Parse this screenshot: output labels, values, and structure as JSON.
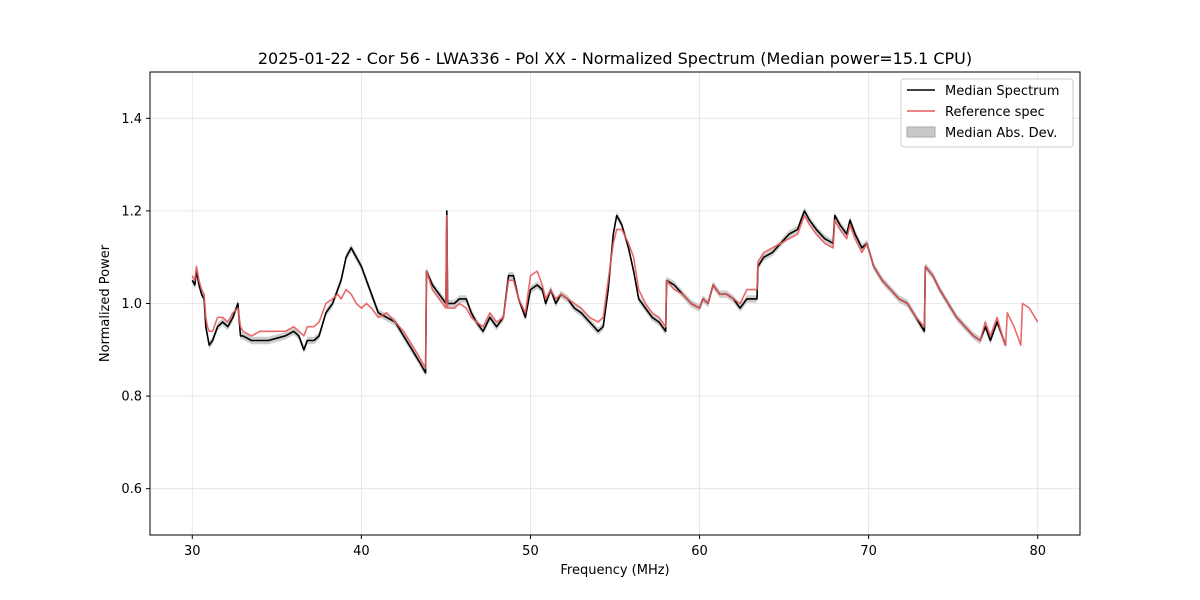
{
  "chart_data": {
    "type": "line",
    "title": "2025-01-22 - Cor 56 - LWA336 - Pol XX - Normalized Spectrum (Median power=15.1 CPU)",
    "xlabel": "Frequency (MHz)",
    "ylabel": "Normalized Power",
    "xlim": [
      27.5,
      82.5
    ],
    "ylim": [
      0.5,
      1.5
    ],
    "xticks": [
      30,
      40,
      50,
      60,
      70,
      80
    ],
    "yticks": [
      0.6,
      0.8,
      1.0,
      1.2,
      1.4
    ],
    "grid": true,
    "legend_position": "top-right",
    "mad_halfwidth": 0.008,
    "series": [
      {
        "name": "Median Spectrum",
        "color": "#000000",
        "points": [
          [
            30.0,
            1.05
          ],
          [
            30.15,
            1.04
          ],
          [
            30.25,
            1.07
          ],
          [
            30.4,
            1.04
          ],
          [
            30.55,
            1.02
          ],
          [
            30.7,
            1.01
          ],
          [
            30.8,
            0.95
          ],
          [
            30.9,
            0.93
          ],
          [
            31.0,
            0.91
          ],
          [
            31.2,
            0.92
          ],
          [
            31.5,
            0.95
          ],
          [
            31.8,
            0.96
          ],
          [
            32.1,
            0.95
          ],
          [
            32.4,
            0.97
          ],
          [
            32.7,
            1.0
          ],
          [
            32.85,
            0.93
          ],
          [
            33.0,
            0.93
          ],
          [
            33.5,
            0.92
          ],
          [
            34.0,
            0.92
          ],
          [
            34.5,
            0.92
          ],
          [
            35.0,
            0.925
          ],
          [
            35.5,
            0.93
          ],
          [
            36.0,
            0.94
          ],
          [
            36.3,
            0.93
          ],
          [
            36.6,
            0.9
          ],
          [
            36.8,
            0.92
          ],
          [
            37.2,
            0.92
          ],
          [
            37.5,
            0.93
          ],
          [
            37.9,
            0.98
          ],
          [
            38.3,
            1.0
          ],
          [
            38.6,
            1.03
          ],
          [
            38.8,
            1.05
          ],
          [
            39.1,
            1.1
          ],
          [
            39.4,
            1.12
          ],
          [
            39.7,
            1.1
          ],
          [
            40.0,
            1.08
          ],
          [
            40.3,
            1.05
          ],
          [
            40.6,
            1.02
          ],
          [
            41.0,
            0.98
          ],
          [
            41.5,
            0.97
          ],
          [
            42.0,
            0.96
          ],
          [
            42.5,
            0.93
          ],
          [
            43.0,
            0.9
          ],
          [
            43.5,
            0.87
          ],
          [
            43.8,
            0.85
          ],
          [
            43.85,
            1.07
          ],
          [
            44.2,
            1.04
          ],
          [
            44.6,
            1.02
          ],
          [
            45.0,
            1.0
          ],
          [
            45.05,
            1.2
          ],
          [
            45.1,
            1.0
          ],
          [
            45.5,
            1.0
          ],
          [
            45.8,
            1.01
          ],
          [
            46.2,
            1.01
          ],
          [
            46.5,
            0.98
          ],
          [
            46.8,
            0.96
          ],
          [
            47.2,
            0.94
          ],
          [
            47.6,
            0.97
          ],
          [
            48.0,
            0.95
          ],
          [
            48.4,
            0.97
          ],
          [
            48.7,
            1.06
          ],
          [
            49.0,
            1.06
          ],
          [
            49.3,
            1.01
          ],
          [
            49.7,
            0.97
          ],
          [
            50.0,
            1.03
          ],
          [
            50.4,
            1.04
          ],
          [
            50.7,
            1.03
          ],
          [
            50.9,
            1.0
          ],
          [
            51.2,
            1.03
          ],
          [
            51.5,
            1.0
          ],
          [
            51.8,
            1.02
          ],
          [
            52.2,
            1.01
          ],
          [
            52.6,
            0.99
          ],
          [
            53.0,
            0.98
          ],
          [
            53.5,
            0.96
          ],
          [
            54.0,
            0.94
          ],
          [
            54.3,
            0.95
          ],
          [
            54.6,
            1.03
          ],
          [
            54.9,
            1.15
          ],
          [
            55.1,
            1.19
          ],
          [
            55.4,
            1.17
          ],
          [
            55.8,
            1.12
          ],
          [
            56.1,
            1.07
          ],
          [
            56.4,
            1.01
          ],
          [
            56.8,
            0.99
          ],
          [
            57.2,
            0.97
          ],
          [
            57.6,
            0.96
          ],
          [
            58.0,
            0.94
          ],
          [
            58.05,
            1.05
          ],
          [
            58.5,
            1.04
          ],
          [
            59.0,
            1.02
          ],
          [
            59.5,
            1.0
          ],
          [
            60.0,
            0.99
          ],
          [
            60.2,
            1.01
          ],
          [
            60.5,
            1.0
          ],
          [
            60.8,
            1.04
          ],
          [
            61.2,
            1.02
          ],
          [
            61.6,
            1.02
          ],
          [
            62.0,
            1.01
          ],
          [
            62.4,
            0.99
          ],
          [
            62.8,
            1.01
          ],
          [
            63.4,
            1.01
          ],
          [
            63.45,
            1.08
          ],
          [
            63.8,
            1.1
          ],
          [
            64.3,
            1.11
          ],
          [
            64.8,
            1.13
          ],
          [
            65.3,
            1.15
          ],
          [
            65.8,
            1.16
          ],
          [
            66.2,
            1.2
          ],
          [
            66.5,
            1.18
          ],
          [
            66.9,
            1.16
          ],
          [
            67.4,
            1.14
          ],
          [
            67.9,
            1.13
          ],
          [
            68.0,
            1.19
          ],
          [
            68.3,
            1.17
          ],
          [
            68.7,
            1.15
          ],
          [
            68.9,
            1.18
          ],
          [
            69.2,
            1.15
          ],
          [
            69.6,
            1.12
          ],
          [
            69.9,
            1.13
          ],
          [
            70.3,
            1.08
          ],
          [
            70.8,
            1.05
          ],
          [
            71.3,
            1.03
          ],
          [
            71.8,
            1.01
          ],
          [
            72.3,
            1.0
          ],
          [
            72.8,
            0.97
          ],
          [
            73.3,
            0.94
          ],
          [
            73.35,
            1.08
          ],
          [
            73.8,
            1.06
          ],
          [
            74.2,
            1.03
          ],
          [
            74.7,
            1.0
          ],
          [
            75.2,
            0.97
          ],
          [
            75.7,
            0.95
          ],
          [
            76.2,
            0.93
          ],
          [
            76.6,
            0.92
          ],
          [
            76.9,
            0.95
          ],
          [
            77.2,
            0.92
          ],
          [
            77.6,
            0.96
          ],
          [
            77.9,
            0.93
          ],
          [
            78.1,
            0.91
          ]
        ]
      },
      {
        "name": "Reference spec",
        "color": "#e8595b",
        "points": [
          [
            30.0,
            1.06
          ],
          [
            30.15,
            1.05
          ],
          [
            30.25,
            1.08
          ],
          [
            30.4,
            1.05
          ],
          [
            30.55,
            1.03
          ],
          [
            30.7,
            1.02
          ],
          [
            30.8,
            0.97
          ],
          [
            30.9,
            0.95
          ],
          [
            31.0,
            0.94
          ],
          [
            31.2,
            0.94
          ],
          [
            31.5,
            0.97
          ],
          [
            31.8,
            0.97
          ],
          [
            32.1,
            0.96
          ],
          [
            32.4,
            0.98
          ],
          [
            32.7,
            0.99
          ],
          [
            32.85,
            0.95
          ],
          [
            33.0,
            0.94
          ],
          [
            33.5,
            0.93
          ],
          [
            34.0,
            0.94
          ],
          [
            34.5,
            0.94
          ],
          [
            35.0,
            0.94
          ],
          [
            35.5,
            0.94
          ],
          [
            36.0,
            0.95
          ],
          [
            36.3,
            0.94
          ],
          [
            36.6,
            0.93
          ],
          [
            36.8,
            0.95
          ],
          [
            37.2,
            0.95
          ],
          [
            37.5,
            0.96
          ],
          [
            37.9,
            1.0
          ],
          [
            38.3,
            1.01
          ],
          [
            38.6,
            1.02
          ],
          [
            38.8,
            1.01
          ],
          [
            39.1,
            1.03
          ],
          [
            39.4,
            1.02
          ],
          [
            39.7,
            1.0
          ],
          [
            40.0,
            0.99
          ],
          [
            40.3,
            1.0
          ],
          [
            40.6,
            0.99
          ],
          [
            41.0,
            0.97
          ],
          [
            41.5,
            0.98
          ],
          [
            42.0,
            0.96
          ],
          [
            42.5,
            0.94
          ],
          [
            43.0,
            0.91
          ],
          [
            43.5,
            0.88
          ],
          [
            43.8,
            0.86
          ],
          [
            43.85,
            1.07
          ],
          [
            44.2,
            1.03
          ],
          [
            44.6,
            1.01
          ],
          [
            45.0,
            0.99
          ],
          [
            45.05,
            1.19
          ],
          [
            45.1,
            0.99
          ],
          [
            45.5,
            0.99
          ],
          [
            45.8,
            1.0
          ],
          [
            46.2,
            0.99
          ],
          [
            46.5,
            0.97
          ],
          [
            46.8,
            0.96
          ],
          [
            47.2,
            0.95
          ],
          [
            47.6,
            0.98
          ],
          [
            48.0,
            0.96
          ],
          [
            48.4,
            0.97
          ],
          [
            48.7,
            1.05
          ],
          [
            49.0,
            1.05
          ],
          [
            49.3,
            1.01
          ],
          [
            49.7,
            0.98
          ],
          [
            50.0,
            1.06
          ],
          [
            50.4,
            1.07
          ],
          [
            50.7,
            1.04
          ],
          [
            50.9,
            1.01
          ],
          [
            51.2,
            1.03
          ],
          [
            51.5,
            1.01
          ],
          [
            51.8,
            1.02
          ],
          [
            52.2,
            1.01
          ],
          [
            52.6,
            1.0
          ],
          [
            53.0,
            0.99
          ],
          [
            53.5,
            0.97
          ],
          [
            54.0,
            0.96
          ],
          [
            54.3,
            0.97
          ],
          [
            54.6,
            1.05
          ],
          [
            54.9,
            1.13
          ],
          [
            55.1,
            1.16
          ],
          [
            55.4,
            1.16
          ],
          [
            55.8,
            1.13
          ],
          [
            56.1,
            1.1
          ],
          [
            56.4,
            1.03
          ],
          [
            56.8,
            1.0
          ],
          [
            57.2,
            0.98
          ],
          [
            57.6,
            0.97
          ],
          [
            58.0,
            0.95
          ],
          [
            58.05,
            1.05
          ],
          [
            58.5,
            1.03
          ],
          [
            59.0,
            1.02
          ],
          [
            59.5,
            1.0
          ],
          [
            60.0,
            0.99
          ],
          [
            60.2,
            1.01
          ],
          [
            60.5,
            1.0
          ],
          [
            60.8,
            1.04
          ],
          [
            61.2,
            1.02
          ],
          [
            61.6,
            1.02
          ],
          [
            62.0,
            1.01
          ],
          [
            62.4,
            1.0
          ],
          [
            62.8,
            1.03
          ],
          [
            63.4,
            1.03
          ],
          [
            63.45,
            1.09
          ],
          [
            63.8,
            1.11
          ],
          [
            64.3,
            1.12
          ],
          [
            64.8,
            1.13
          ],
          [
            65.3,
            1.14
          ],
          [
            65.8,
            1.15
          ],
          [
            66.2,
            1.19
          ],
          [
            66.5,
            1.17
          ],
          [
            66.9,
            1.15
          ],
          [
            67.4,
            1.13
          ],
          [
            67.9,
            1.12
          ],
          [
            68.0,
            1.18
          ],
          [
            68.3,
            1.16
          ],
          [
            68.7,
            1.14
          ],
          [
            68.9,
            1.17
          ],
          [
            69.2,
            1.14
          ],
          [
            69.6,
            1.11
          ],
          [
            69.9,
            1.13
          ],
          [
            70.3,
            1.08
          ],
          [
            70.8,
            1.05
          ],
          [
            71.3,
            1.03
          ],
          [
            71.8,
            1.01
          ],
          [
            72.3,
            1.0
          ],
          [
            72.8,
            0.97
          ],
          [
            73.3,
            0.95
          ],
          [
            73.35,
            1.08
          ],
          [
            73.8,
            1.06
          ],
          [
            74.2,
            1.03
          ],
          [
            74.7,
            1.0
          ],
          [
            75.2,
            0.97
          ],
          [
            75.7,
            0.95
          ],
          [
            76.2,
            0.93
          ],
          [
            76.6,
            0.92
          ],
          [
            76.9,
            0.96
          ],
          [
            77.2,
            0.93
          ],
          [
            77.6,
            0.97
          ],
          [
            77.9,
            0.93
          ],
          [
            78.1,
            0.91
          ],
          [
            78.2,
            0.98
          ],
          [
            78.6,
            0.95
          ],
          [
            79.0,
            0.91
          ],
          [
            79.1,
            1.0
          ],
          [
            79.5,
            0.99
          ],
          [
            80.0,
            0.96
          ]
        ]
      },
      {
        "name": "Median Abs. Dev.",
        "color": "#c8c8c8"
      }
    ]
  }
}
